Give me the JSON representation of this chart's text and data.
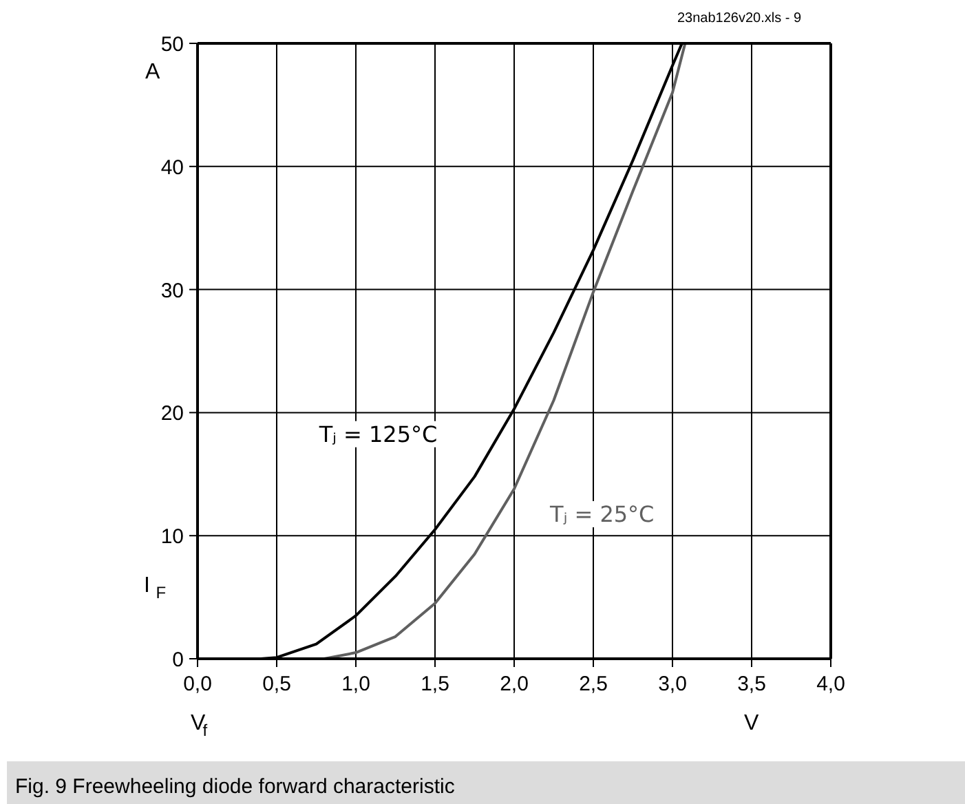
{
  "chart_data": {
    "type": "line",
    "title": "Fig. 9 Freewheeling diode forward characteristic",
    "xlabel": "V$_{f}$",
    "ylabel": "I$_{F}$",
    "series": [
      {
        "name": "Tⱼ = 125°C",
        "color": "#000000",
        "x": [
          0.4,
          0.5,
          0.75,
          1.0,
          1.25,
          1.5,
          1.75,
          2.0,
          2.25,
          2.5,
          2.75,
          3.0,
          3.06
        ],
        "values": [
          0,
          0.1,
          1.2,
          3.5,
          6.7,
          10.5,
          14.8,
          20.3,
          26.5,
          33.2,
          40.5,
          48.2,
          50
        ]
      },
      {
        "name": "Tⱼ = 25°C",
        "color": "#606060",
        "x": [
          0.8,
          1.0,
          1.25,
          1.5,
          1.75,
          2.0,
          2.25,
          2.5,
          2.75,
          3.0,
          3.08
        ],
        "values": [
          0,
          0.5,
          1.8,
          4.5,
          8.5,
          13.8,
          21.0,
          29.8,
          38.0,
          46.0,
          50
        ]
      }
    ],
    "annotations": [
      "A",
      "V",
      "23nab126v20.xls - 9"
    ],
    "xlim": [
      0,
      4
    ],
    "ylim": [
      0,
      50
    ],
    "xticks": [
      {
        "value": 0,
        "label": "0,0"
      },
      {
        "value": 0.5,
        "label": "0,5"
      },
      {
        "value": 1,
        "label": "1,0"
      },
      {
        "value": 1.5,
        "label": "1,5"
      },
      {
        "value": 2,
        "label": "2,0"
      },
      {
        "value": 2.5,
        "label": "2,5"
      },
      {
        "value": 3,
        "label": "3,0"
      },
      {
        "value": 3.5,
        "label": "3,5"
      },
      {
        "value": 4,
        "label": "4,0"
      }
    ],
    "yticks": [
      0,
      10,
      20,
      30,
      40,
      50
    ],
    "grid": true,
    "line_style": "solid",
    "marker": "none"
  }
}
